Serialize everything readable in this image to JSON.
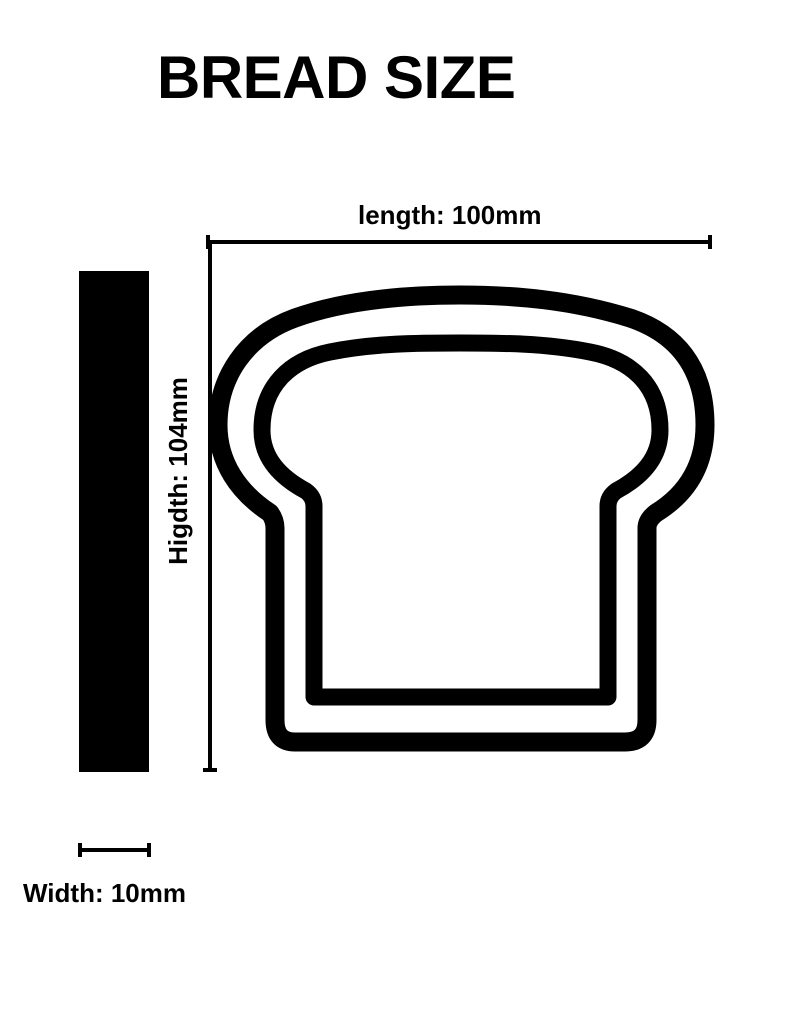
{
  "title": "BREAD SIZE",
  "dimensions": {
    "length": "length: 100mm",
    "height": "Higdth: 104mm",
    "width": "Width: 10mm"
  },
  "colors": {
    "ink": "#000000",
    "background": "#ffffff"
  }
}
